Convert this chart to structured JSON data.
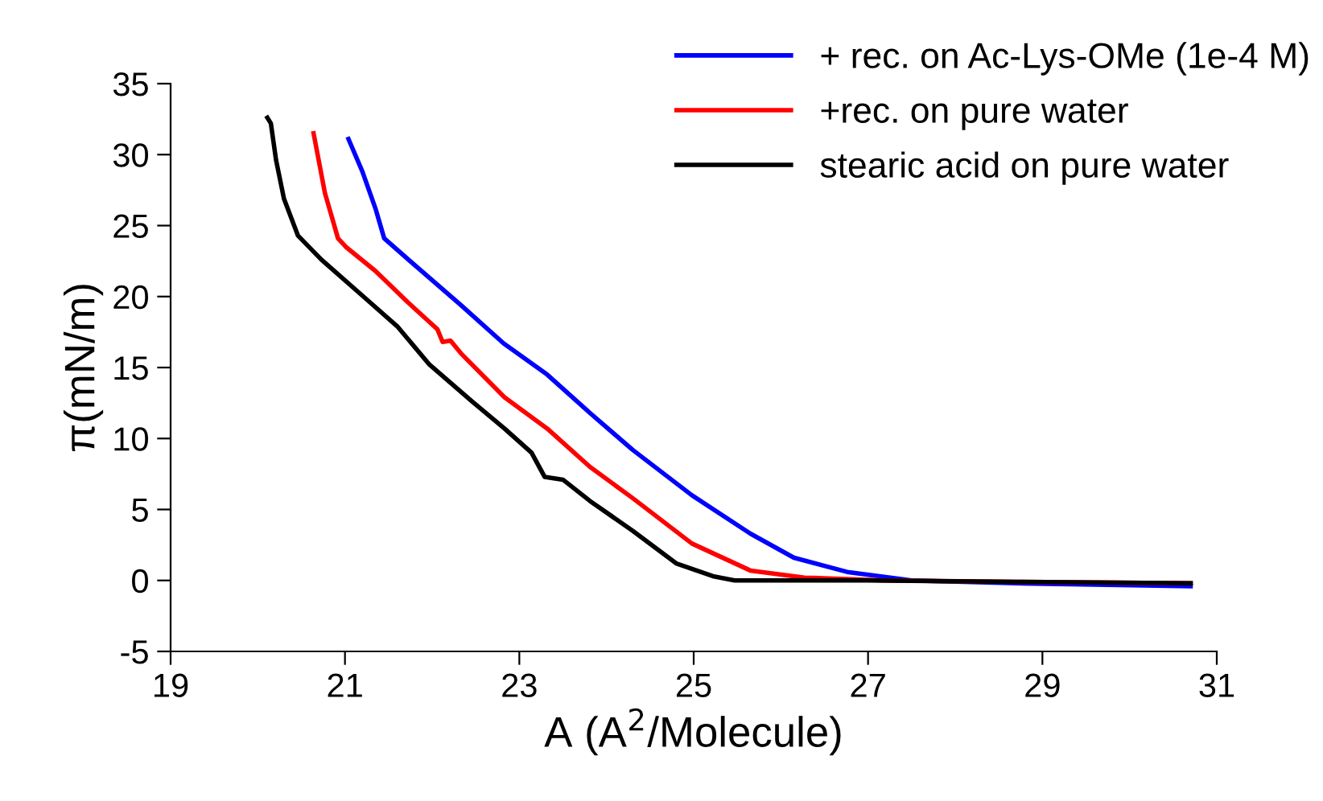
{
  "chart_data": {
    "type": "line",
    "xlabel": "A (A$^{2}$/Molecule)",
    "ylabel": "π(mN/m)",
    "xlim": [
      19,
      31
    ],
    "xticks": [
      19,
      21,
      23,
      25,
      27,
      29,
      31
    ],
    "ylim": [
      -5,
      35
    ],
    "yticks": [
      -5,
      0,
      5,
      10,
      15,
      20,
      25,
      30,
      35
    ],
    "grid": false,
    "legend": "top right",
    "marker": "none",
    "line_style": "solid",
    "series": [
      {
        "name": "+ rec. on Ac-Lys-OMe (1e-4 M)",
        "color": "#0000ff",
        "x": [
          21.04,
          21.2,
          21.35,
          21.45,
          21.84,
          22.33,
          22.82,
          23.32,
          23.81,
          24.3,
          24.98,
          25.65,
          26.15,
          26.76,
          27.5,
          28.7,
          30.7
        ],
        "values": [
          31.1,
          28.8,
          26.2,
          24.1,
          22.0,
          19.4,
          16.7,
          14.5,
          11.8,
          9.2,
          6.0,
          3.3,
          1.6,
          0.6,
          0.0,
          -0.2,
          -0.4
        ]
      },
      {
        "name": "+rec. on pure water",
        "color": "#ff0000",
        "x": [
          20.64,
          20.77,
          20.92,
          21.01,
          21.35,
          21.72,
          21.97,
          22.06,
          22.12,
          22.21,
          22.33,
          22.83,
          23.32,
          23.81,
          24.3,
          24.98,
          25.65,
          26.27,
          27.2,
          28.7,
          30.7
        ],
        "values": [
          31.5,
          27.3,
          24.1,
          23.5,
          21.8,
          19.6,
          18.2,
          17.7,
          16.8,
          16.9,
          16.0,
          12.9,
          10.7,
          8.0,
          5.8,
          2.6,
          0.7,
          0.2,
          0.0,
          -0.1,
          -0.2
        ]
      },
      {
        "name": "stearic acid on pure water",
        "color": "#000000",
        "x": [
          20.11,
          20.15,
          20.21,
          20.3,
          20.46,
          20.73,
          21.23,
          21.6,
          21.97,
          22.46,
          22.83,
          23.14,
          23.29,
          23.5,
          23.81,
          24.3,
          24.8,
          25.22,
          25.47,
          27.0,
          28.7,
          30.7
        ],
        "values": [
          32.6,
          32.2,
          29.6,
          26.9,
          24.3,
          22.6,
          19.9,
          17.9,
          15.2,
          12.6,
          10.7,
          9.0,
          7.3,
          7.1,
          5.6,
          3.5,
          1.2,
          0.3,
          0.0,
          0.0,
          -0.1,
          -0.2
        ]
      }
    ]
  }
}
